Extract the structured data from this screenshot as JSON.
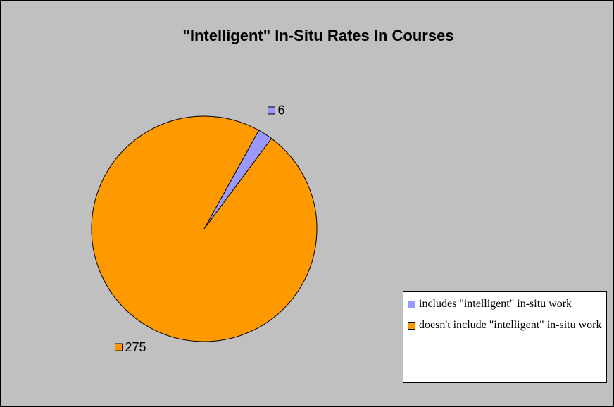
{
  "chart_data": {
    "type": "pie",
    "title": "\"Intelligent\" In-Situ Rates In Courses",
    "categories": [
      "includes \"intelligent\" in-situ work",
      "doesn't include \"intelligent\" in-situ work"
    ],
    "values": [
      6,
      275
    ],
    "colors": [
      "#9999ff",
      "#ff9900"
    ],
    "legend": "right"
  }
}
